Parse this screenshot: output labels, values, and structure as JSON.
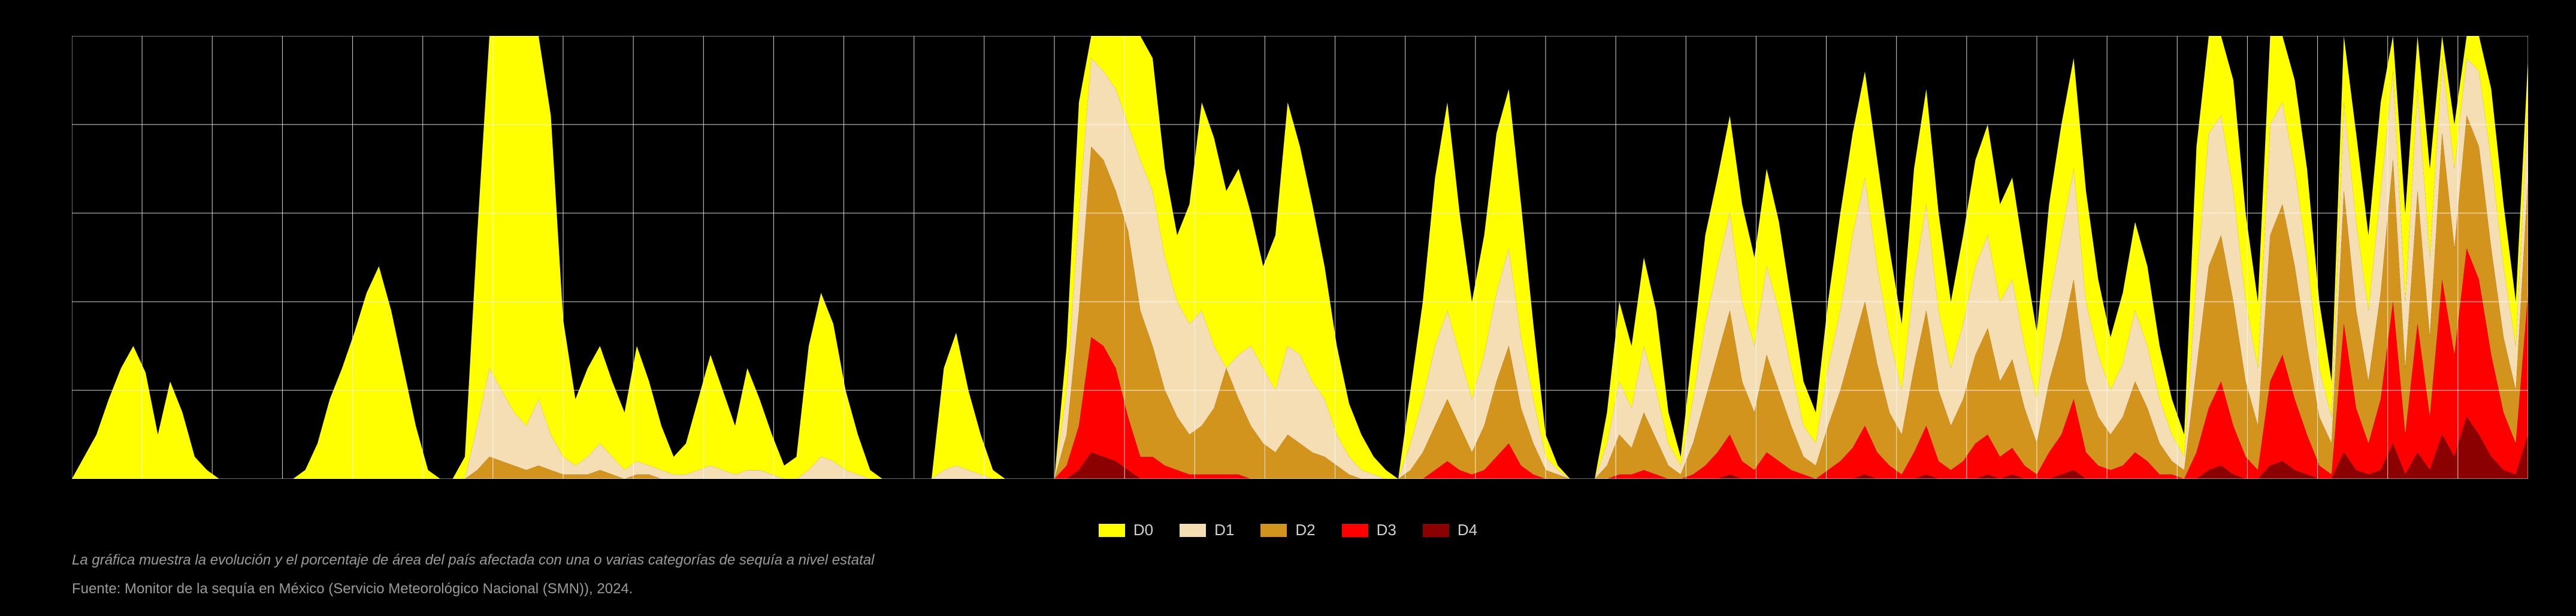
{
  "chart": {
    "type": "area",
    "background_color": "#000000",
    "grid_color": "#ffffff",
    "grid_opacity": 0.85,
    "grid_stroke": 1,
    "ylim": [
      0,
      100
    ],
    "ytick_step": 20,
    "axis_color": "#ffffff",
    "n_xcells": 35,
    "series_order": [
      "D4",
      "D3",
      "D2",
      "D1",
      "D0"
    ],
    "series_colors": {
      "D0": "#ffff00",
      "D1": "#f5deb3",
      "D2": "#d2941c",
      "D3": "#ff0000",
      "D4": "#8b0000"
    },
    "legend_fontsize": 26,
    "legend_text_color": "#d0d0d0",
    "caption_fontsize": 24,
    "caption_color": "#9a9a9a",
    "cumulative": {
      "x": [
        0.0,
        0.005,
        0.01,
        0.015,
        0.02,
        0.025,
        0.03,
        0.035,
        0.04,
        0.045,
        0.05,
        0.055,
        0.06,
        0.065,
        0.07,
        0.075,
        0.08,
        0.085,
        0.09,
        0.095,
        0.1,
        0.105,
        0.11,
        0.115,
        0.12,
        0.125,
        0.13,
        0.135,
        0.14,
        0.145,
        0.15,
        0.155,
        0.16,
        0.165,
        0.17,
        0.175,
        0.18,
        0.185,
        0.19,
        0.195,
        0.2,
        0.205,
        0.21,
        0.215,
        0.22,
        0.225,
        0.23,
        0.235,
        0.24,
        0.245,
        0.25,
        0.255,
        0.26,
        0.265,
        0.27,
        0.275,
        0.28,
        0.285,
        0.29,
        0.295,
        0.3,
        0.305,
        0.31,
        0.315,
        0.32,
        0.325,
        0.33,
        0.335,
        0.34,
        0.345,
        0.35,
        0.355,
        0.36,
        0.365,
        0.37,
        0.375,
        0.38,
        0.385,
        0.39,
        0.395,
        0.4,
        0.405,
        0.41,
        0.415,
        0.42,
        0.425,
        0.43,
        0.435,
        0.44,
        0.445,
        0.45,
        0.455,
        0.46,
        0.465,
        0.47,
        0.475,
        0.48,
        0.485,
        0.49,
        0.495,
        0.5,
        0.505,
        0.51,
        0.515,
        0.52,
        0.525,
        0.53,
        0.535,
        0.54,
        0.545,
        0.55,
        0.555,
        0.56,
        0.565,
        0.57,
        0.575,
        0.58,
        0.585,
        0.59,
        0.595,
        0.6,
        0.605,
        0.61,
        0.615,
        0.62,
        0.625,
        0.63,
        0.635,
        0.64,
        0.645,
        0.65,
        0.655,
        0.66,
        0.665,
        0.67,
        0.675,
        0.68,
        0.685,
        0.69,
        0.695,
        0.7,
        0.705,
        0.71,
        0.715,
        0.72,
        0.725,
        0.73,
        0.735,
        0.74,
        0.745,
        0.75,
        0.755,
        0.76,
        0.765,
        0.77,
        0.775,
        0.78,
        0.785,
        0.79,
        0.795,
        0.8,
        0.805,
        0.81,
        0.815,
        0.82,
        0.825,
        0.83,
        0.835,
        0.84,
        0.845,
        0.85,
        0.855,
        0.86,
        0.865,
        0.87,
        0.875,
        0.88,
        0.885,
        0.89,
        0.895,
        0.9,
        0.905,
        0.91,
        0.915,
        0.92,
        0.925,
        0.93,
        0.935,
        0.94,
        0.945,
        0.95,
        0.955,
        0.96,
        0.965,
        0.97,
        0.975,
        0.98,
        0.985,
        0.99,
        0.995,
        1.0
      ],
      "D0": [
        0,
        5,
        10,
        18,
        25,
        30,
        24,
        10,
        22,
        15,
        5,
        2,
        0,
        0,
        0,
        0,
        0,
        0,
        0,
        2,
        8,
        18,
        25,
        33,
        42,
        48,
        38,
        25,
        12,
        2,
        0,
        0,
        5,
        55,
        100,
        100,
        100,
        100,
        100,
        82,
        36,
        18,
        25,
        30,
        22,
        15,
        30,
        22,
        12,
        5,
        8,
        18,
        28,
        20,
        12,
        25,
        18,
        10,
        3,
        5,
        30,
        42,
        35,
        20,
        10,
        2,
        0,
        0,
        0,
        0,
        0,
        25,
        33,
        20,
        10,
        2,
        0,
        0,
        0,
        0,
        0,
        30,
        85,
        100,
        100,
        100,
        100,
        100,
        95,
        70,
        55,
        62,
        85,
        77,
        65,
        70,
        60,
        48,
        55,
        85,
        75,
        62,
        48,
        30,
        17,
        10,
        5,
        2,
        0,
        20,
        40,
        68,
        85,
        60,
        40,
        55,
        78,
        88,
        62,
        35,
        10,
        3,
        0,
        0,
        0,
        15,
        40,
        30,
        50,
        38,
        15,
        5,
        30,
        55,
        68,
        82,
        62,
        50,
        70,
        58,
        40,
        22,
        15,
        40,
        60,
        78,
        92,
        72,
        52,
        35,
        70,
        88,
        60,
        40,
        55,
        72,
        80,
        62,
        68,
        50,
        33,
        62,
        80,
        95,
        65,
        45,
        32,
        42,
        58,
        48,
        30,
        18,
        10,
        75,
        100,
        100,
        90,
        60,
        40,
        100,
        100,
        90,
        70,
        40,
        22,
        100,
        78,
        55,
        85,
        100,
        60,
        100,
        70,
        100,
        80,
        100,
        100,
        88,
        62,
        40,
        95
      ],
      "D1": [
        0,
        0,
        0,
        0,
        0,
        0,
        0,
        0,
        0,
        0,
        0,
        0,
        0,
        0,
        0,
        0,
        0,
        0,
        0,
        0,
        0,
        0,
        0,
        0,
        0,
        0,
        0,
        0,
        0,
        0,
        0,
        0,
        0,
        12,
        25,
        20,
        15,
        12,
        18,
        10,
        5,
        3,
        5,
        8,
        5,
        2,
        4,
        3,
        2,
        1,
        1,
        2,
        3,
        2,
        1,
        2,
        2,
        1,
        0,
        0,
        2,
        5,
        4,
        2,
        1,
        0,
        0,
        0,
        0,
        0,
        0,
        2,
        3,
        2,
        1,
        0,
        0,
        0,
        0,
        0,
        0,
        20,
        60,
        95,
        92,
        88,
        80,
        72,
        65,
        50,
        40,
        35,
        38,
        30,
        25,
        28,
        30,
        25,
        20,
        30,
        28,
        22,
        18,
        10,
        5,
        2,
        1,
        0,
        0,
        8,
        18,
        30,
        38,
        28,
        18,
        28,
        42,
        52,
        32,
        18,
        5,
        2,
        0,
        0,
        0,
        8,
        22,
        16,
        30,
        20,
        8,
        3,
        18,
        35,
        48,
        60,
        40,
        30,
        48,
        38,
        25,
        12,
        8,
        25,
        38,
        55,
        68,
        48,
        32,
        20,
        45,
        62,
        38,
        25,
        35,
        48,
        55,
        40,
        45,
        30,
        18,
        40,
        55,
        70,
        40,
        28,
        20,
        26,
        38,
        30,
        18,
        10,
        5,
        45,
        78,
        82,
        65,
        40,
        25,
        80,
        85,
        70,
        50,
        25,
        14,
        85,
        58,
        38,
        65,
        92,
        40,
        88,
        50,
        95,
        70,
        95,
        92,
        72,
        48,
        30,
        85
      ],
      "D2": [
        0,
        0,
        0,
        0,
        0,
        0,
        0,
        0,
        0,
        0,
        0,
        0,
        0,
        0,
        0,
        0,
        0,
        0,
        0,
        0,
        0,
        0,
        0,
        0,
        0,
        0,
        0,
        0,
        0,
        0,
        0,
        0,
        0,
        2,
        5,
        4,
        3,
        2,
        3,
        2,
        1,
        1,
        1,
        2,
        1,
        0,
        1,
        1,
        0,
        0,
        0,
        0,
        0,
        0,
        0,
        0,
        0,
        0,
        0,
        0,
        0,
        0,
        0,
        0,
        0,
        0,
        0,
        0,
        0,
        0,
        0,
        0,
        0,
        0,
        0,
        0,
        0,
        0,
        0,
        0,
        0,
        10,
        38,
        75,
        72,
        65,
        56,
        38,
        30,
        20,
        14,
        10,
        12,
        16,
        25,
        18,
        12,
        8,
        6,
        10,
        8,
        6,
        5,
        3,
        1,
        0,
        0,
        0,
        0,
        2,
        6,
        12,
        18,
        12,
        6,
        12,
        22,
        30,
        16,
        8,
        2,
        1,
        0,
        0,
        0,
        3,
        10,
        7,
        15,
        9,
        3,
        1,
        8,
        18,
        28,
        38,
        22,
        15,
        28,
        20,
        12,
        5,
        3,
        12,
        20,
        30,
        40,
        26,
        15,
        10,
        25,
        38,
        20,
        12,
        18,
        28,
        34,
        22,
        27,
        16,
        8,
        22,
        32,
        45,
        22,
        14,
        10,
        14,
        22,
        16,
        8,
        4,
        2,
        25,
        48,
        55,
        40,
        22,
        12,
        55,
        62,
        48,
        30,
        14,
        8,
        65,
        38,
        22,
        42,
        72,
        25,
        65,
        32,
        78,
        52,
        82,
        75,
        52,
        32,
        20,
        68
      ],
      "D3": [
        0,
        0,
        0,
        0,
        0,
        0,
        0,
        0,
        0,
        0,
        0,
        0,
        0,
        0,
        0,
        0,
        0,
        0,
        0,
        0,
        0,
        0,
        0,
        0,
        0,
        0,
        0,
        0,
        0,
        0,
        0,
        0,
        0,
        0,
        0,
        0,
        0,
        0,
        0,
        0,
        0,
        0,
        0,
        0,
        0,
        0,
        0,
        0,
        0,
        0,
        0,
        0,
        0,
        0,
        0,
        0,
        0,
        0,
        0,
        0,
        0,
        0,
        0,
        0,
        0,
        0,
        0,
        0,
        0,
        0,
        0,
        0,
        0,
        0,
        0,
        0,
        0,
        0,
        0,
        0,
        0,
        3,
        12,
        32,
        30,
        25,
        14,
        5,
        5,
        3,
        2,
        1,
        1,
        1,
        1,
        1,
        0,
        0,
        0,
        0,
        0,
        0,
        0,
        0,
        0,
        0,
        0,
        0,
        0,
        0,
        0,
        2,
        4,
        2,
        1,
        2,
        5,
        8,
        3,
        1,
        0,
        0,
        0,
        0,
        0,
        0,
        1,
        1,
        2,
        1,
        0,
        0,
        1,
        3,
        6,
        10,
        4,
        2,
        6,
        4,
        2,
        1,
        0,
        2,
        4,
        7,
        12,
        6,
        3,
        1,
        6,
        12,
        4,
        2,
        4,
        8,
        10,
        5,
        7,
        3,
        1,
        6,
        10,
        18,
        6,
        3,
        2,
        3,
        6,
        4,
        1,
        1,
        0,
        6,
        16,
        22,
        12,
        5,
        2,
        22,
        28,
        18,
        10,
        3,
        1,
        35,
        16,
        8,
        18,
        40,
        10,
        35,
        14,
        45,
        28,
        52,
        45,
        28,
        15,
        8,
        42
      ],
      "D4": [
        0,
        0,
        0,
        0,
        0,
        0,
        0,
        0,
        0,
        0,
        0,
        0,
        0,
        0,
        0,
        0,
        0,
        0,
        0,
        0,
        0,
        0,
        0,
        0,
        0,
        0,
        0,
        0,
        0,
        0,
        0,
        0,
        0,
        0,
        0,
        0,
        0,
        0,
        0,
        0,
        0,
        0,
        0,
        0,
        0,
        0,
        0,
        0,
        0,
        0,
        0,
        0,
        0,
        0,
        0,
        0,
        0,
        0,
        0,
        0,
        0,
        0,
        0,
        0,
        0,
        0,
        0,
        0,
        0,
        0,
        0,
        0,
        0,
        0,
        0,
        0,
        0,
        0,
        0,
        0,
        0,
        0,
        2,
        6,
        5,
        4,
        2,
        0,
        0,
        0,
        0,
        0,
        0,
        0,
        0,
        0,
        0,
        0,
        0,
        0,
        0,
        0,
        0,
        0,
        0,
        0,
        0,
        0,
        0,
        0,
        0,
        0,
        0,
        0,
        0,
        0,
        0,
        0,
        0,
        0,
        0,
        0,
        0,
        0,
        0,
        0,
        0,
        0,
        0,
        0,
        0,
        0,
        0,
        0,
        0,
        1,
        0,
        0,
        0,
        0,
        0,
        0,
        0,
        0,
        0,
        0,
        1,
        0,
        0,
        0,
        0,
        1,
        0,
        0,
        0,
        0,
        1,
        0,
        1,
        0,
        0,
        0,
        1,
        2,
        0,
        0,
        0,
        0,
        0,
        0,
        0,
        0,
        0,
        0,
        2,
        3,
        1,
        0,
        0,
        3,
        4,
        2,
        1,
        0,
        0,
        6,
        2,
        1,
        2,
        8,
        1,
        6,
        2,
        10,
        5,
        14,
        10,
        5,
        2,
        1,
        10
      ]
    }
  },
  "legend": {
    "items": [
      {
        "key": "D0",
        "label": "D0"
      },
      {
        "key": "D1",
        "label": "D1"
      },
      {
        "key": "D2",
        "label": "D2"
      },
      {
        "key": "D3",
        "label": "D3"
      },
      {
        "key": "D4",
        "label": "D4"
      }
    ]
  },
  "caption": "La gráfica muestra la evolución y el porcentaje de área del país afectada con una o varias categorías de sequía a nivel estatal",
  "source": "Fuente: Monitor de la sequía en México (Servicio Meteorológico Nacional (SMN)), 2024."
}
